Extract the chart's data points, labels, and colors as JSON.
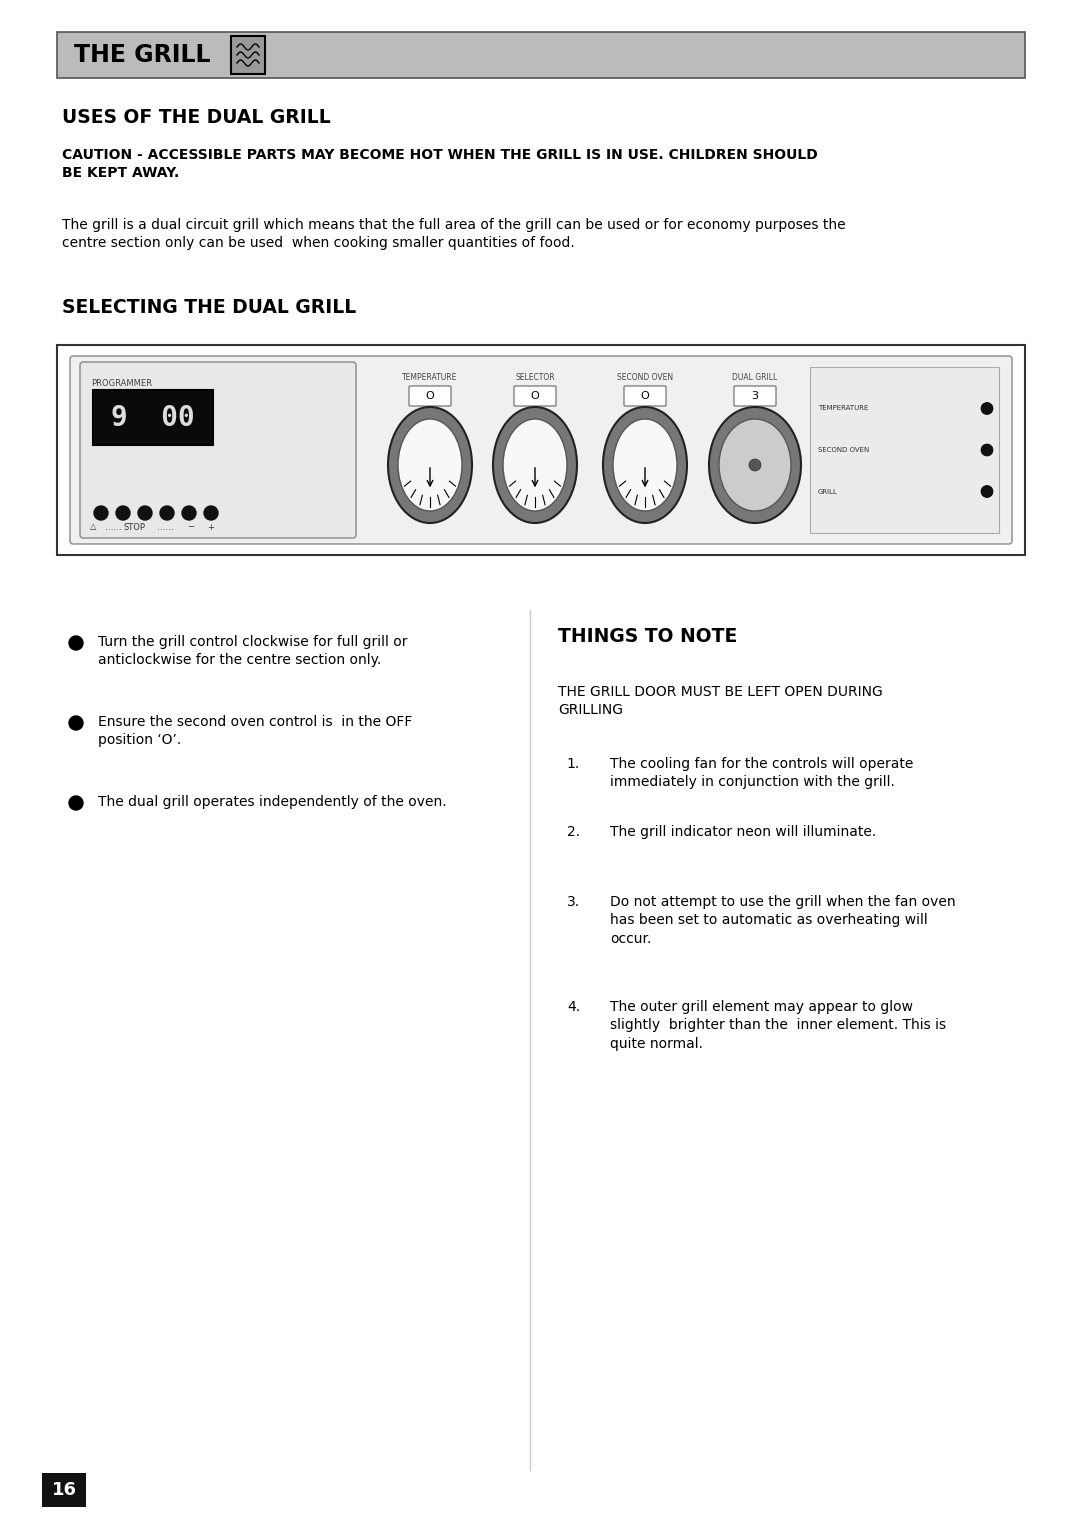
{
  "bg_color": "#ffffff",
  "header_bg": "#bbbbbb",
  "header_text": "THE GRILL",
  "section1_title": "USES OF THE DUAL GRILL",
  "caution_text": "CAUTION - ACCESSIBLE PARTS MAY BECOME HOT WHEN THE GRILL IS IN USE. CHILDREN SHOULD\nBE KEPT AWAY.",
  "body_text": "The grill is a dual circuit grill which means that the full area of the grill can be used or for economy purposes the\ncentre section only can be used  when cooking smaller quantities of food.",
  "section2_title": "SELECTING THE DUAL GRILL",
  "bullet_points": [
    "Turn the grill control clockwise for full grill or\nanticlockwise for the centre section only.",
    "Ensure the second oven control is  in the OFF\nposition ‘O’.",
    "The dual grill operates independently of the oven."
  ],
  "things_title": "THINGS TO NOTE",
  "things_note": "THE GRILL DOOR MUST BE LEFT OPEN DURING\nGRILLING",
  "things_items": [
    "The cooling fan for the controls will operate\nimmediately in conjunction with the grill.",
    "The grill indicator neon will illuminate.",
    "Do not attempt to use the grill when the fan oven\nhas been set to automatic as overheating will\noccur.",
    "The outer grill element may appear to glow\nslightly  brighter than the  inner element. This is\nquite normal."
  ],
  "page_number": "16",
  "text_color": "#000000"
}
